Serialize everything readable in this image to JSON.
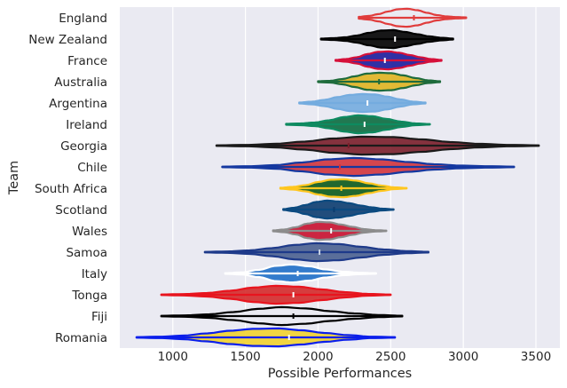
{
  "chart_data": {
    "type": "violin",
    "title": "",
    "xlabel": "Possible Performances",
    "ylabel": "Team",
    "xlim": [
      635,
      3665
    ],
    "xticks": [
      1000,
      1500,
      2000,
      2500,
      3000,
      3500
    ],
    "xtick_labels": [
      "1000",
      "1500",
      "2000",
      "2500",
      "3000",
      "3500"
    ],
    "grid": true,
    "background_color": "#EAEAF2",
    "grid_color": "#FFFFFF",
    "categories": [
      "England",
      "New Zealand",
      "France",
      "Australia",
      "Argentina",
      "Ireland",
      "Georgia",
      "Chile",
      "South Africa",
      "Scotland",
      "Wales",
      "Samoa",
      "Italy",
      "Tonga",
      "Fiji",
      "Romania"
    ],
    "series": [
      {
        "team": "England",
        "min": 2280,
        "max": 3020,
        "median": 2660,
        "q1": 2560,
        "q3": 2750,
        "fill": "#EAEAF2",
        "edge": "#E03C3C",
        "median_color": "#E03C3C",
        "shape": [
          0.1,
          0.2,
          0.4,
          0.7,
          0.95,
          1,
          0.85,
          0.55,
          0.3,
          0.15,
          0.08,
          0.04
        ]
      },
      {
        "team": "New Zealand",
        "min": 2020,
        "max": 2930,
        "median": 2530,
        "q1": 2450,
        "q3": 2620,
        "fill": "#000000",
        "edge": "#000000",
        "median_color": "#FFFFFF",
        "shape": [
          0.05,
          0.1,
          0.2,
          0.4,
          0.7,
          0.95,
          1,
          0.8,
          0.55,
          0.3,
          0.15,
          0.05
        ]
      },
      {
        "team": "France",
        "min": 2120,
        "max": 2850,
        "median": 2460,
        "q1": 2380,
        "q3": 2530,
        "fill": "#1C1C9C",
        "edge": "#D6103A",
        "median_color": "#FFFFFF",
        "shape": [
          0.05,
          0.15,
          0.35,
          0.7,
          0.95,
          1,
          0.85,
          0.6,
          0.35,
          0.15,
          0.05
        ]
      },
      {
        "team": "Australia",
        "min": 2000,
        "max": 2840,
        "median": 2420,
        "q1": 2330,
        "q3": 2500,
        "fill": "#E0B420",
        "edge": "#1E6B3C",
        "median_color": "#1E6B3C",
        "shape": [
          0.05,
          0.1,
          0.3,
          0.6,
          0.9,
          1,
          0.95,
          0.7,
          0.4,
          0.15,
          0.05
        ]
      },
      {
        "team": "Argentina",
        "min": 1870,
        "max": 2740,
        "median": 2340,
        "q1": 2240,
        "q3": 2430,
        "fill": "#74ACDF",
        "edge": "#74ACDF",
        "median_color": "#FFFFFF",
        "shape": [
          0.05,
          0.15,
          0.35,
          0.65,
          0.9,
          1,
          0.95,
          0.7,
          0.4,
          0.15,
          0.05
        ]
      },
      {
        "team": "Ireland",
        "min": 1780,
        "max": 2770,
        "median": 2320,
        "q1": 2230,
        "q3": 2400,
        "fill": "#0B6B3F",
        "edge": "#0E8A60",
        "median_color": "#FFFFFF",
        "shape": [
          0.05,
          0.1,
          0.2,
          0.45,
          0.8,
          1,
          0.9,
          0.6,
          0.3,
          0.1,
          0.03
        ]
      },
      {
        "team": "Georgia",
        "min": 1300,
        "max": 3520,
        "median": 2210,
        "q1": 1900,
        "q3": 2450,
        "fill": "#7A1E2A",
        "edge": "#1A1A1A",
        "median_color": "#7A1E2A",
        "shape": [
          0.03,
          0.08,
          0.2,
          0.45,
          0.8,
          1,
          0.95,
          0.7,
          0.4,
          0.2,
          0.08,
          0.03
        ]
      },
      {
        "team": "Chile",
        "min": 1340,
        "max": 3350,
        "median": 2150,
        "q1": 1950,
        "q3": 2350,
        "fill": "#D3343C",
        "edge": "#1438A0",
        "median_color": "#D3343C",
        "shape": [
          0.03,
          0.08,
          0.2,
          0.5,
          0.85,
          1,
          0.85,
          0.55,
          0.3,
          0.15,
          0.08,
          0.03
        ]
      },
      {
        "team": "South Africa",
        "min": 1740,
        "max": 2610,
        "median": 2160,
        "q1": 2080,
        "q3": 2250,
        "fill": "#0B5A1A",
        "edge": "#FFC61E",
        "median_color": "#FFC61E",
        "shape": [
          0.05,
          0.15,
          0.35,
          0.7,
          0.95,
          1,
          0.85,
          0.55,
          0.3,
          0.1,
          0.03
        ]
      },
      {
        "team": "Scotland",
        "min": 1760,
        "max": 2520,
        "median": 2110,
        "q1": 2020,
        "q3": 2200,
        "fill": "#0B3C6F",
        "edge": "#0B4A80",
        "median_color": "#0B3C6F",
        "shape": [
          0.05,
          0.2,
          0.5,
          0.85,
          1,
          0.9,
          0.7,
          0.45,
          0.25,
          0.1,
          0.03
        ]
      },
      {
        "team": "Wales",
        "min": 1690,
        "max": 2470,
        "median": 2090,
        "q1": 2000,
        "q3": 2170,
        "fill": "#C8102E",
        "edge": "#8C8C8C",
        "median_color": "#FFFFFF",
        "shape": [
          0.05,
          0.15,
          0.4,
          0.8,
          1,
          0.95,
          0.7,
          0.45,
          0.2,
          0.08,
          0.03
        ]
      },
      {
        "team": "Samoa",
        "min": 1220,
        "max": 2760,
        "median": 2010,
        "q1": 1830,
        "q3": 2180,
        "fill": "#4A6090",
        "edge": "#1E3A8A",
        "median_color": "#C8D4E8",
        "shape": [
          0.03,
          0.08,
          0.2,
          0.45,
          0.8,
          1,
          0.9,
          0.6,
          0.3,
          0.12,
          0.04
        ]
      },
      {
        "team": "Italy",
        "min": 1360,
        "max": 2400,
        "median": 1860,
        "q1": 1780,
        "q3": 1950,
        "fill": "#1F6FC8",
        "edge": "#FFFFFF",
        "median_color": "#FFFFFF",
        "shape": [
          0.04,
          0.12,
          0.4,
          0.85,
          1,
          0.8,
          0.45,
          0.2,
          0.08,
          0.03
        ]
      },
      {
        "team": "Tonga",
        "min": 920,
        "max": 2500,
        "median": 1830,
        "q1": 1600,
        "q3": 2000,
        "fill": "#D42A2A",
        "edge": "#E8141E",
        "median_color": "#FFFFFF",
        "shape": [
          0.03,
          0.08,
          0.2,
          0.45,
          0.8,
          1,
          0.9,
          0.6,
          0.3,
          0.1,
          0.03
        ]
      },
      {
        "team": "Fiji",
        "min": 920,
        "max": 2580,
        "median": 1830,
        "q1": 1600,
        "q3": 2050,
        "fill": "#EAEAF2",
        "edge": "#000000",
        "median_color": "#000000",
        "shape": [
          0.03,
          0.08,
          0.2,
          0.45,
          0.8,
          1,
          0.85,
          0.55,
          0.3,
          0.12,
          0.04
        ]
      },
      {
        "team": "Romania",
        "min": 750,
        "max": 2530,
        "median": 1800,
        "q1": 1550,
        "q3": 2000,
        "fill": "#F2D22E",
        "edge": "#0A1EEB",
        "median_color": "#FFFFFF",
        "shape": [
          0.03,
          0.08,
          0.2,
          0.45,
          0.75,
          0.95,
          1,
          0.8,
          0.5,
          0.25,
          0.08,
          0.03
        ]
      }
    ]
  }
}
